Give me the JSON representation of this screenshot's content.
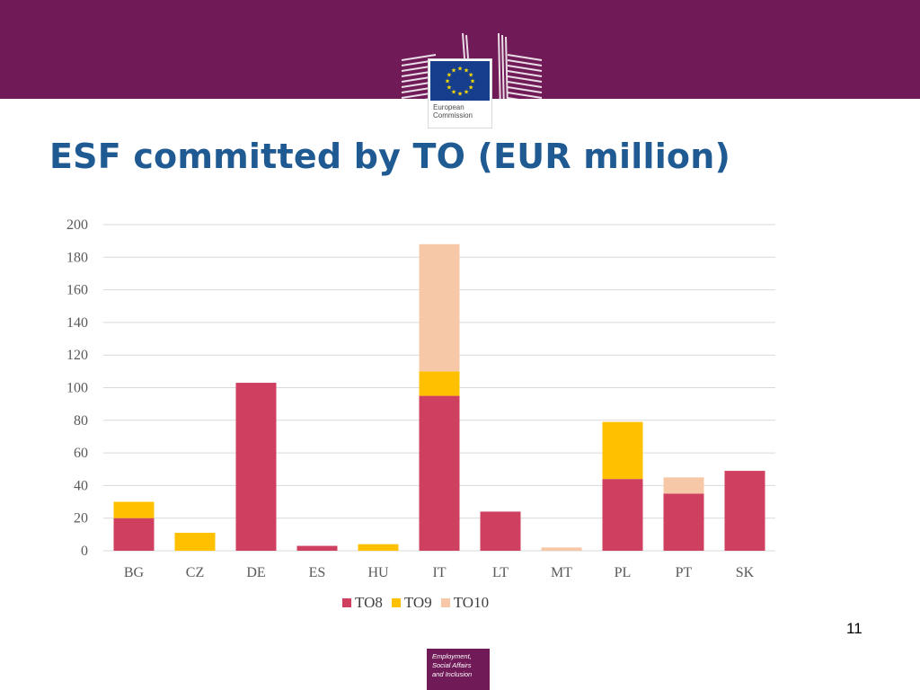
{
  "header": {
    "logo_text": "European\nCommission"
  },
  "title": "ESF committed by TO (EUR million)",
  "colors": {
    "band": "#701a57",
    "title": "#1f5a92",
    "TO8": "#cf4060",
    "TO9": "#ffc000",
    "TO10": "#f6c8a8",
    "grid": "#d9d9d9"
  },
  "chart_data": {
    "type": "bar",
    "stacked": true,
    "categories": [
      "BG",
      "CZ",
      "DE",
      "ES",
      "HU",
      "IT",
      "LT",
      "MT",
      "PL",
      "PT",
      "SK"
    ],
    "series": [
      {
        "name": "TO8",
        "values": [
          20,
          0,
          103,
          3,
          0,
          95,
          24,
          0,
          44,
          35,
          49
        ]
      },
      {
        "name": "TO9",
        "values": [
          10,
          11,
          0,
          0,
          4,
          15,
          0,
          0,
          35,
          0,
          0
        ]
      },
      {
        "name": "TO10",
        "values": [
          0,
          0,
          0,
          0,
          0,
          78,
          0,
          2,
          0,
          10,
          0
        ]
      }
    ],
    "y_ticks": [
      "0",
      "20",
      "40",
      "60",
      "80",
      "100",
      "120",
      "140",
      "160",
      "180",
      "200"
    ],
    "ylim": [
      0,
      200
    ],
    "grid": true,
    "legend_position": "bottom"
  },
  "legend": [
    {
      "label": "TO8",
      "color": "#cf4060"
    },
    {
      "label": "TO9",
      "color": "#ffc000"
    },
    {
      "label": "TO10",
      "color": "#f6c8a8"
    }
  ],
  "page_number": "11",
  "footer": {
    "badge_text": "Employment,\nSocial Affairs\nand Inclusion"
  }
}
